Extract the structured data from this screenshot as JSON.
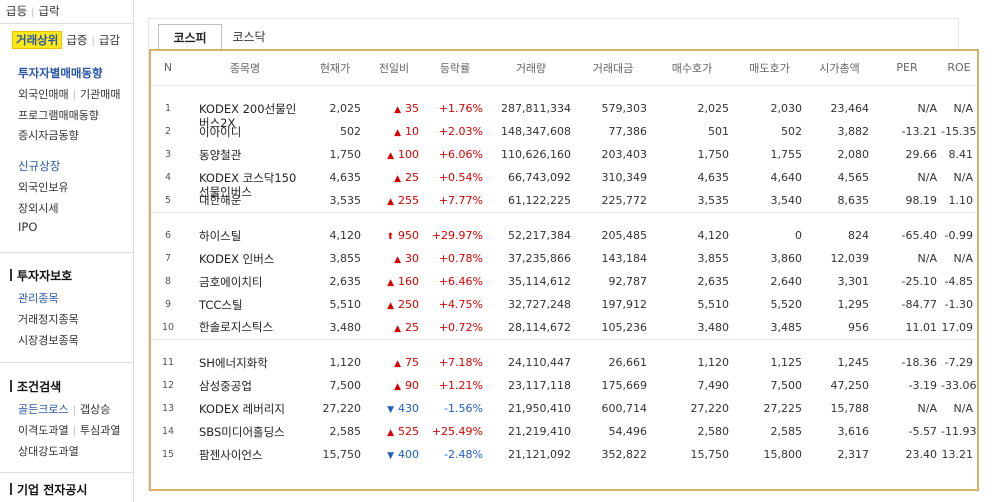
{
  "sidebar": {
    "top_links": [
      "급등",
      "급락"
    ],
    "ranking_links": [
      "거래상위",
      "급증",
      "급감"
    ],
    "group1": {
      "title": "투자자별매매동향",
      "row1": [
        "외국인매매",
        "기관매매"
      ],
      "items": [
        "프로그램매매동향",
        "증시자금동향"
      ]
    },
    "group2": {
      "title": "신규상장",
      "items": [
        "외국인보유",
        "장외시세",
        "IPO"
      ]
    },
    "section_protect": {
      "header": "투자자보호",
      "active": "관리종목",
      "items": [
        "거래정지종목",
        "시장경보종목"
      ]
    },
    "section_cond": {
      "header": "조건검색",
      "row1": [
        "골든크로스",
        "갭상승"
      ],
      "row2": [
        "이격도과열",
        "투심과열"
      ],
      "row3": "상대강도과열"
    },
    "section_disc": {
      "header": "기업 전자공시"
    }
  },
  "tabs": [
    "코스피",
    "코스닥"
  ],
  "table": {
    "headers": [
      "N",
      "종목명",
      "현재가",
      "전일비",
      "등락률",
      "거래량",
      "거래대금",
      "매수호가",
      "매도호가",
      "시가총액",
      "PER",
      "ROE"
    ],
    "groups": [
      [
        {
          "n": "1",
          "name": "KODEX 200선물인",
          "name2": "버스2X",
          "price": "2,025",
          "dir": "up",
          "arrow": "▲",
          "chg": "35",
          "rate": "+1.76%",
          "vol": "287,811,334",
          "amt": "579,303",
          "bid": "2,025",
          "ask": "2,030",
          "cap": "23,464",
          "per": "N/A",
          "roe": "N/A"
        },
        {
          "n": "2",
          "name": "이아이디",
          "name2": "",
          "price": "502",
          "dir": "up",
          "arrow": "▲",
          "chg": "10",
          "rate": "+2.03%",
          "vol": "148,347,608",
          "amt": "77,386",
          "bid": "501",
          "ask": "502",
          "cap": "3,882",
          "per": "-13.21",
          "roe": "-15.35"
        },
        {
          "n": "3",
          "name": "동양철관",
          "name2": "",
          "price": "1,750",
          "dir": "up",
          "arrow": "▲",
          "chg": "100",
          "rate": "+6.06%",
          "vol": "110,626,160",
          "amt": "203,403",
          "bid": "1,750",
          "ask": "1,755",
          "cap": "2,080",
          "per": "29.66",
          "roe": "8.41"
        },
        {
          "n": "4",
          "name": "KODEX 코스닥150",
          "name2": "선물인버스",
          "price": "4,635",
          "dir": "up",
          "arrow": "▲",
          "chg": "25",
          "rate": "+0.54%",
          "vol": "66,743,092",
          "amt": "310,349",
          "bid": "4,635",
          "ask": "4,640",
          "cap": "4,565",
          "per": "N/A",
          "roe": "N/A"
        },
        {
          "n": "5",
          "name": "대한해운",
          "name2": "",
          "price": "3,535",
          "dir": "up",
          "arrow": "▲",
          "chg": "255",
          "rate": "+7.77%",
          "vol": "61,122,225",
          "amt": "225,772",
          "bid": "3,535",
          "ask": "3,540",
          "cap": "8,635",
          "per": "98.19",
          "roe": "1.10"
        }
      ],
      [
        {
          "n": "6",
          "name": "하이스틸",
          "name2": "",
          "price": "4,120",
          "dir": "up",
          "arrow": "⬆",
          "chg": "950",
          "rate": "+29.97%",
          "vol": "52,217,384",
          "amt": "205,485",
          "bid": "4,120",
          "ask": "0",
          "cap": "824",
          "per": "-65.40",
          "roe": "-0.99"
        },
        {
          "n": "7",
          "name": "KODEX 인버스",
          "name2": "",
          "price": "3,855",
          "dir": "up",
          "arrow": "▲",
          "chg": "30",
          "rate": "+0.78%",
          "vol": "37,235,866",
          "amt": "143,184",
          "bid": "3,855",
          "ask": "3,860",
          "cap": "12,039",
          "per": "N/A",
          "roe": "N/A"
        },
        {
          "n": "8",
          "name": "금호에이치티",
          "name2": "",
          "price": "2,635",
          "dir": "up",
          "arrow": "▲",
          "chg": "160",
          "rate": "+6.46%",
          "vol": "35,114,612",
          "amt": "92,787",
          "bid": "2,635",
          "ask": "2,640",
          "cap": "3,301",
          "per": "-25.10",
          "roe": "-4.85"
        },
        {
          "n": "9",
          "name": "TCC스틸",
          "name2": "",
          "price": "5,510",
          "dir": "up",
          "arrow": "▲",
          "chg": "250",
          "rate": "+4.75%",
          "vol": "32,727,248",
          "amt": "197,912",
          "bid": "5,510",
          "ask": "5,520",
          "cap": "1,295",
          "per": "-84.77",
          "roe": "-1.30"
        },
        {
          "n": "10",
          "name": "한솔로지스틱스",
          "name2": "",
          "price": "3,480",
          "dir": "up",
          "arrow": "▲",
          "chg": "25",
          "rate": "+0.72%",
          "vol": "28,114,672",
          "amt": "105,236",
          "bid": "3,480",
          "ask": "3,485",
          "cap": "956",
          "per": "11.01",
          "roe": "17.09"
        }
      ],
      [
        {
          "n": "11",
          "name": "SH에너지화학",
          "name2": "",
          "price": "1,120",
          "dir": "up",
          "arrow": "▲",
          "chg": "75",
          "rate": "+7.18%",
          "vol": "24,110,447",
          "amt": "26,661",
          "bid": "1,120",
          "ask": "1,125",
          "cap": "1,245",
          "per": "-18.36",
          "roe": "-7.29"
        },
        {
          "n": "12",
          "name": "삼성중공업",
          "name2": "",
          "price": "7,500",
          "dir": "up",
          "arrow": "▲",
          "chg": "90",
          "rate": "+1.21%",
          "vol": "23,117,118",
          "amt": "175,669",
          "bid": "7,490",
          "ask": "7,500",
          "cap": "47,250",
          "per": "-3.19",
          "roe": "-33.06"
        },
        {
          "n": "13",
          "name": "KODEX 레버리지",
          "name2": "",
          "price": "27,220",
          "dir": "down",
          "arrow": "▼",
          "chg": "430",
          "rate": "-1.56%",
          "vol": "21,950,410",
          "amt": "600,714",
          "bid": "27,220",
          "ask": "27,225",
          "cap": "15,788",
          "per": "N/A",
          "roe": "N/A"
        },
        {
          "n": "14",
          "name": "SBS미디어홀딩스",
          "name2": "",
          "price": "2,585",
          "dir": "up",
          "arrow": "▲",
          "chg": "525",
          "rate": "+25.49%",
          "vol": "21,219,410",
          "amt": "54,496",
          "bid": "2,580",
          "ask": "2,585",
          "cap": "3,616",
          "per": "-5.57",
          "roe": "-11.93"
        },
        {
          "n": "15",
          "name": "팜젠사이언스",
          "name2": "",
          "price": "15,750",
          "dir": "down",
          "arrow": "▼",
          "chg": "400",
          "rate": "-2.48%",
          "vol": "21,121,092",
          "amt": "352,822",
          "bid": "15,750",
          "ask": "15,800",
          "cap": "2,317",
          "per": "23.40",
          "roe": "13.21"
        }
      ]
    ]
  }
}
